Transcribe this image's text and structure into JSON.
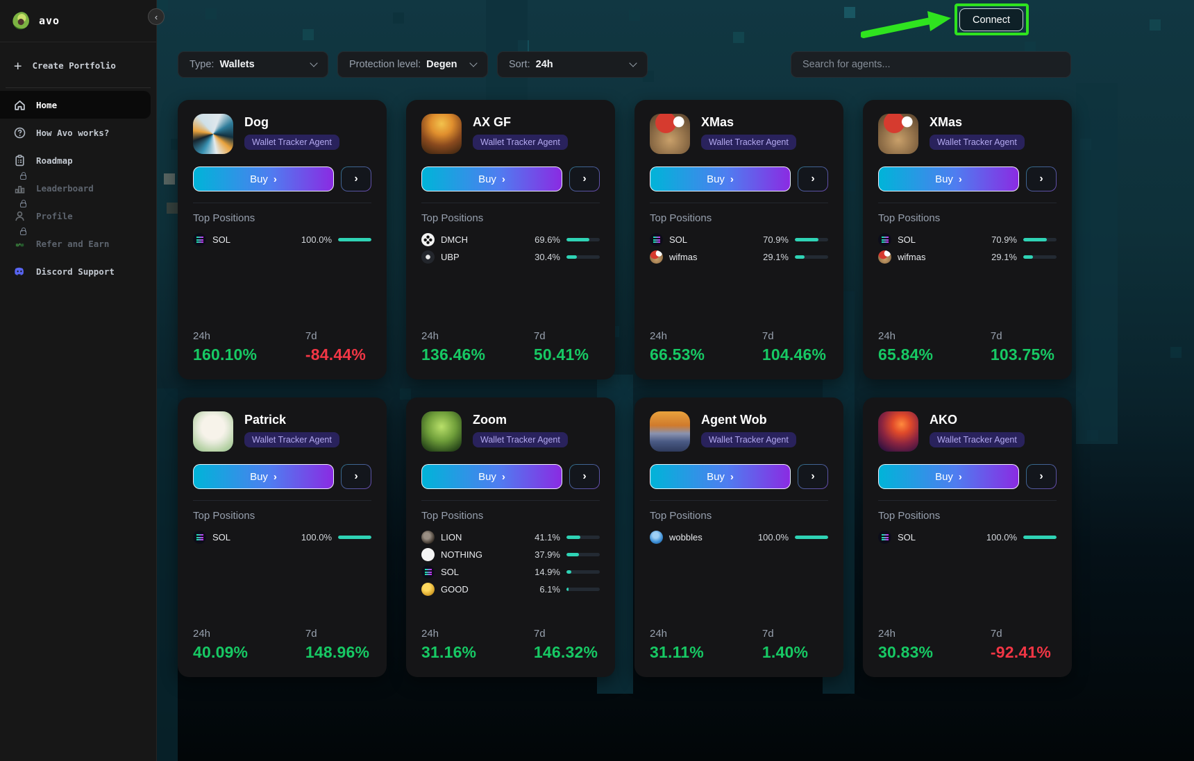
{
  "sidebar": {
    "logo_text": "avo",
    "collapse_glyph": "‹",
    "create_label": "Create Portfolio",
    "items": [
      {
        "label": "Home",
        "icon": "home-icon",
        "active": true,
        "locked": false
      },
      {
        "label": "How Avo works?",
        "icon": "help-icon",
        "active": false,
        "locked": false
      },
      {
        "label": "Roadmap",
        "icon": "roadmap-icon",
        "active": false,
        "locked": false
      },
      {
        "label": "Leaderboard",
        "icon": "leaderboard-icon",
        "active": false,
        "locked": true
      },
      {
        "label": "Profile",
        "icon": "profile-icon",
        "active": false,
        "locked": true
      },
      {
        "label": "Refer and Earn",
        "icon": "refer-icon",
        "active": false,
        "locked": true
      },
      {
        "label": "Discord Support",
        "icon": "discord-icon",
        "active": false,
        "locked": false
      }
    ]
  },
  "header": {
    "connect_label": "Connect"
  },
  "filters": [
    {
      "label": "Type:",
      "value": "Wallets"
    },
    {
      "label": "Protection level:",
      "value": "Degen"
    },
    {
      "label": "Sort:",
      "value": "24h"
    }
  ],
  "search": {
    "placeholder": "Search for agents..."
  },
  "card_shared": {
    "badge": "Wallet Tracker Agent",
    "buy": "Buy",
    "top_positions": "Top Positions",
    "day_label": "24h",
    "week_label": "7d"
  },
  "agents": [
    {
      "name": "Dog",
      "avatar_bg": "conic-gradient(from 20deg at 50% 50%, #dfe7ec 0deg, #2f7d9b 40deg, #12303f 80deg, #e9a23c 110deg, #e3ebef 150deg, #3a93b4 190deg, #15222c 230deg, #e8a23d 260deg, #cfe0e8 300deg, #dfe7ec 360deg)",
      "positions": [
        {
          "token": "SOL",
          "pct": "100.0%",
          "bar": 100,
          "icon": "sol"
        }
      ],
      "day": "160.10%",
      "day_positive": true,
      "week": "-84.44%",
      "week_positive": false
    },
    {
      "name": "AX GF",
      "avatar_bg": "radial-gradient(circle at 50% 25%, #f2c24d 0%, #e08f2e 30%, #8a4a1e 60%, #33200f 100%)",
      "positions": [
        {
          "token": "DMCH",
          "pct": "69.6%",
          "bar": 69.6,
          "icon": "dmch"
        },
        {
          "token": "UBP",
          "pct": "30.4%",
          "bar": 30.4,
          "icon": "ubp"
        }
      ],
      "day": "136.46%",
      "day_positive": true,
      "week": "50.41%",
      "week_positive": true
    },
    {
      "name": "XMas",
      "avatar_bg": "radial-gradient(circle at 72% 20%, #ffffff 0 12%, transparent 13%), radial-gradient(circle at 40% 22%, #d63b2f 0 26%, transparent 27%), radial-gradient(circle at 50% 65%, #c9a06a 0%, #8a6a45 55%, #55402a 100%)",
      "positions": [
        {
          "token": "SOL",
          "pct": "70.9%",
          "bar": 70.9,
          "icon": "sol"
        },
        {
          "token": "wifmas",
          "pct": "29.1%",
          "bar": 29.1,
          "icon": "wifmas"
        }
      ],
      "day": "66.53%",
      "day_positive": true,
      "week": "104.46%",
      "week_positive": true
    },
    {
      "name": "XMas",
      "avatar_bg": "radial-gradient(circle at 72% 20%, #ffffff 0 12%, transparent 13%), radial-gradient(circle at 40% 22%, #d63b2f 0 26%, transparent 27%), radial-gradient(circle at 50% 65%, #c9a06a 0%, #8a6a45 55%, #55402a 100%)",
      "positions": [
        {
          "token": "SOL",
          "pct": "70.9%",
          "bar": 70.9,
          "icon": "sol"
        },
        {
          "token": "wifmas",
          "pct": "29.1%",
          "bar": 29.1,
          "icon": "wifmas"
        }
      ],
      "day": "65.84%",
      "day_positive": true,
      "week": "103.75%",
      "week_positive": true
    },
    {
      "name": "Patrick",
      "avatar_bg": "radial-gradient(circle at 50% 40%, #f7f3ea 0 36%, #e4e9d8 50%, #b9d3a8 75%, #8fbb8b 100%)",
      "positions": [
        {
          "token": "SOL",
          "pct": "100.0%",
          "bar": 100,
          "icon": "sol"
        }
      ],
      "day": "40.09%",
      "day_positive": true,
      "week": "148.96%",
      "week_positive": true
    },
    {
      "name": "Zoom",
      "avatar_bg": "radial-gradient(circle at 50% 38%, #b9e06a 0%, #6f9e3a 45%, #2f501d 80%, #16290e 100%)",
      "positions": [
        {
          "token": "LION",
          "pct": "41.1%",
          "bar": 41.1,
          "icon": "lion"
        },
        {
          "token": "NOTHING",
          "pct": "37.9%",
          "bar": 37.9,
          "icon": "nothing"
        },
        {
          "token": "SOL",
          "pct": "14.9%",
          "bar": 14.9,
          "icon": "sol"
        },
        {
          "token": "GOOD",
          "pct": "6.1%",
          "bar": 6.1,
          "icon": "good"
        }
      ],
      "day": "31.16%",
      "day_positive": true,
      "week": "146.32%",
      "week_positive": true
    },
    {
      "name": "Agent Wob",
      "avatar_bg": "linear-gradient(180deg, #e8a23d 0%, #d07a2c 35%, #8a93b0 55%, #4a5a84 75%, #2e3a5c 100%)",
      "positions": [
        {
          "token": "wobbles",
          "pct": "100.0%",
          "bar": 100,
          "icon": "wobbles"
        }
      ],
      "day": "31.11%",
      "day_positive": true,
      "week": "1.40%",
      "week_positive": true
    },
    {
      "name": "AKO",
      "avatar_bg": "radial-gradient(circle at 58% 32%, #ff8a3d 0%, #e04a2a 25%, #8a2440 55%, #3a1340 85%, #1c0a26 100%)",
      "positions": [
        {
          "token": "SOL",
          "pct": "100.0%",
          "bar": 100,
          "icon": "sol"
        }
      ],
      "day": "30.83%",
      "day_positive": true,
      "week": "-92.41%",
      "week_positive": false
    }
  ],
  "colors": {
    "positive": "#17c964",
    "negative": "#f23645",
    "annotation_green": "#2fe31f",
    "bar_fill": "#2fd3b5",
    "badge_bg": "#29225c",
    "badge_text": "#b3a9f0",
    "buy_gradient_start": "#00b4d8",
    "buy_gradient_end": "#8a2be2"
  }
}
